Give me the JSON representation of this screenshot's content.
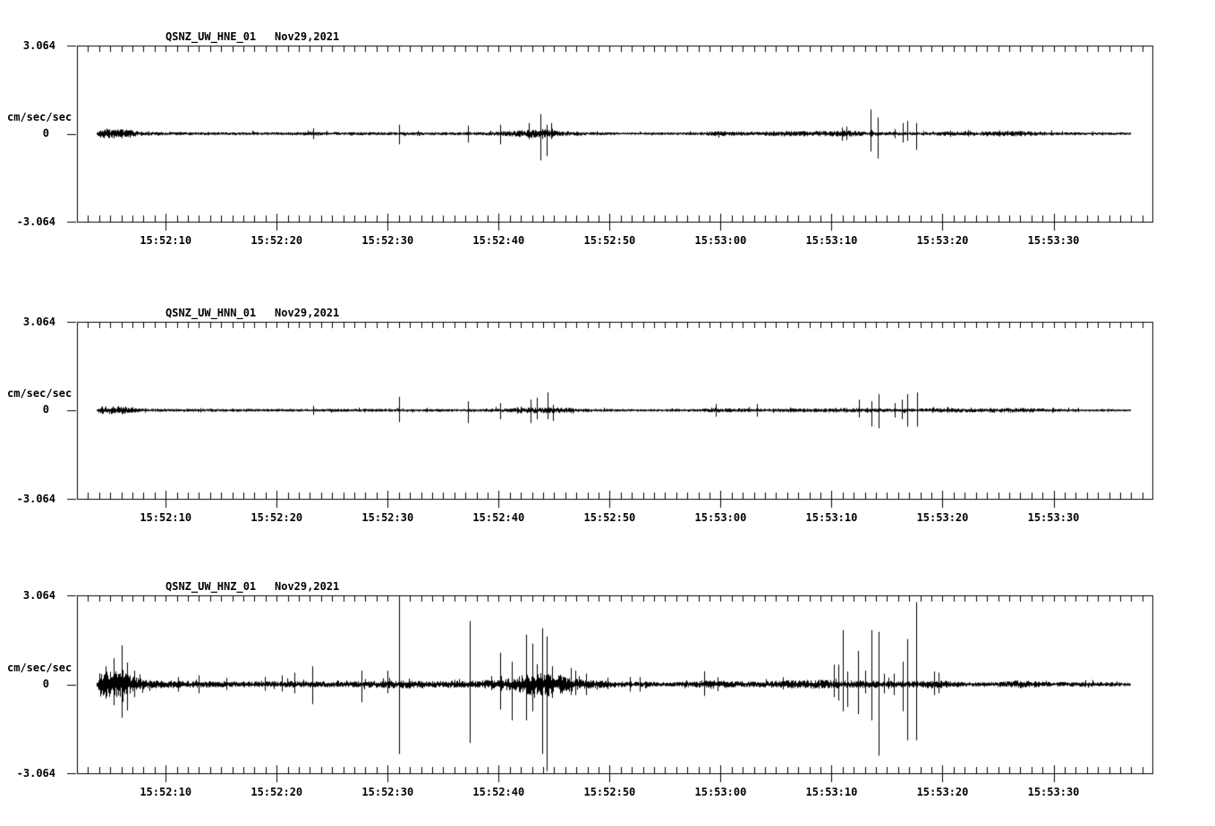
{
  "page": {
    "background": "#ffffff",
    "ink": "#000000"
  },
  "chart_data": {
    "type": "line",
    "kind": "seismogram-3-component-strong-motion",
    "date": "Nov29,2021",
    "grid": "off",
    "trace_color": "#000000",
    "y_axis": {
      "units_label": "cm/sec/sec",
      "max": 3.064,
      "min": -3.064,
      "max_label": "3.064",
      "zero_label": "0",
      "min_label": "-3.064"
    },
    "x_axis": {
      "start_time": "15:52:02",
      "end_time": "15:53:39",
      "seconds_domain": [
        2,
        98.9
      ],
      "minor_tick_every_s": 1,
      "major_tick_every_s": 10,
      "tick_labels": [
        {
          "t": 10,
          "text": "15:52:10"
        },
        {
          "t": 20,
          "text": "15:52:20"
        },
        {
          "t": 30,
          "text": "15:52:30"
        },
        {
          "t": 40,
          "text": "15:52:40"
        },
        {
          "t": 50,
          "text": "15:52:50"
        },
        {
          "t": 60,
          "text": "15:53:00"
        },
        {
          "t": 70,
          "text": "15:53:10"
        },
        {
          "t": 80,
          "text": "15:53:20"
        },
        {
          "t": 90,
          "text": "15:53:30"
        }
      ]
    },
    "panels": [
      {
        "station": "QSNZ_UW_HNE_01",
        "date": "Nov29,2021",
        "seed": 11,
        "trace": {
          "t_start": 3.75,
          "t_end": 96.9,
          "envelope": [
            [
              3.75,
              0.03
            ],
            [
              4.1,
              0.17
            ],
            [
              5.5,
              0.15
            ],
            [
              6.8,
              0.13
            ],
            [
              7.6,
              0.07
            ],
            [
              9,
              0.055
            ],
            [
              14,
              0.05
            ],
            [
              22,
              0.05
            ],
            [
              23.3,
              0.06
            ],
            [
              24,
              0.05
            ],
            [
              30,
              0.05
            ],
            [
              36,
              0.05
            ],
            [
              39.5,
              0.06
            ],
            [
              41,
              0.09
            ],
            [
              42.5,
              0.12
            ],
            [
              43.8,
              0.13
            ],
            [
              45,
              0.1
            ],
            [
              46.5,
              0.07
            ],
            [
              48,
              0.05
            ],
            [
              52,
              0.04
            ],
            [
              56,
              0.045
            ],
            [
              58,
              0.05
            ],
            [
              59.5,
              0.08
            ],
            [
              61,
              0.08
            ],
            [
              62.5,
              0.06
            ],
            [
              64,
              0.07
            ],
            [
              65.5,
              0.09
            ],
            [
              67,
              0.08
            ],
            [
              68.5,
              0.09
            ],
            [
              70,
              0.09
            ],
            [
              71.5,
              0.1
            ],
            [
              72.5,
              0.08
            ],
            [
              74.5,
              0.06
            ],
            [
              76,
              0.06
            ],
            [
              78,
              0.05
            ],
            [
              79.5,
              0.07
            ],
            [
              81,
              0.08
            ],
            [
              82.5,
              0.06
            ],
            [
              84,
              0.07
            ],
            [
              85.5,
              0.08
            ],
            [
              87,
              0.09
            ],
            [
              88.5,
              0.07
            ],
            [
              90,
              0.05
            ],
            [
              93,
              0.045
            ],
            [
              96.9,
              0.04
            ]
          ],
          "spikes": [
            [
              23.3,
              0.19,
              0.19
            ],
            [
              31.0,
              0.31,
              0.37
            ],
            [
              37.2,
              0.28,
              0.31
            ],
            [
              40.1,
              0.31,
              0.37
            ],
            [
              42.7,
              0.37,
              0.19
            ],
            [
              43.8,
              0.68,
              0.93
            ],
            [
              44.35,
              0.31,
              0.78
            ],
            [
              44.75,
              0.37,
              0.19
            ],
            [
              70.9,
              0.22,
              0.25
            ],
            [
              71.3,
              0.25,
              0.22
            ],
            [
              73.55,
              0.84,
              0.62
            ],
            [
              74.15,
              0.56,
              0.87
            ],
            [
              75.7,
              0.16,
              0.16
            ],
            [
              76.4,
              0.37,
              0.31
            ],
            [
              76.85,
              0.44,
              0.25
            ],
            [
              77.6,
              0.37,
              0.56
            ]
          ]
        }
      },
      {
        "station": "QSNZ_UW_HNN_01",
        "date": "Nov29,2021",
        "seed": 22,
        "trace": {
          "t_start": 3.75,
          "t_end": 96.9,
          "envelope": [
            [
              3.75,
              0.03
            ],
            [
              4.1,
              0.15
            ],
            [
              5.5,
              0.13
            ],
            [
              6.8,
              0.11
            ],
            [
              7.6,
              0.06
            ],
            [
              9,
              0.05
            ],
            [
              20,
              0.045
            ],
            [
              30,
              0.05
            ],
            [
              36,
              0.045
            ],
            [
              39.5,
              0.055
            ],
            [
              41,
              0.07
            ],
            [
              42.5,
              0.09
            ],
            [
              44,
              0.1
            ],
            [
              45.5,
              0.09
            ],
            [
              47,
              0.06
            ],
            [
              49,
              0.045
            ],
            [
              53,
              0.04
            ],
            [
              57,
              0.045
            ],
            [
              59,
              0.06
            ],
            [
              60.5,
              0.07
            ],
            [
              62,
              0.06
            ],
            [
              63.5,
              0.055
            ],
            [
              65,
              0.05
            ],
            [
              66.5,
              0.06
            ],
            [
              68,
              0.065
            ],
            [
              69.5,
              0.07
            ],
            [
              71,
              0.075
            ],
            [
              72.5,
              0.07
            ],
            [
              74,
              0.06
            ],
            [
              76,
              0.05
            ],
            [
              78,
              0.06
            ],
            [
              79.5,
              0.07
            ],
            [
              81,
              0.075
            ],
            [
              82.5,
              0.06
            ],
            [
              84,
              0.065
            ],
            [
              85.5,
              0.07
            ],
            [
              87,
              0.075
            ],
            [
              88.5,
              0.065
            ],
            [
              90,
              0.05
            ],
            [
              93,
              0.04
            ],
            [
              96.9,
              0.035
            ]
          ],
          "spikes": [
            [
              23.3,
              0.16,
              0.16
            ],
            [
              31.0,
              0.47,
              0.41
            ],
            [
              37.2,
              0.31,
              0.44
            ],
            [
              40.1,
              0.25,
              0.31
            ],
            [
              42.9,
              0.37,
              0.44
            ],
            [
              43.4,
              0.44,
              0.31
            ],
            [
              44.4,
              0.62,
              0.31
            ],
            [
              44.9,
              0.19,
              0.37
            ],
            [
              59.6,
              0.22,
              0.22
            ],
            [
              63.3,
              0.22,
              0.22
            ],
            [
              72.5,
              0.37,
              0.25
            ],
            [
              73.6,
              0.31,
              0.56
            ],
            [
              74.2,
              0.56,
              0.62
            ],
            [
              75.7,
              0.25,
              0.25
            ],
            [
              76.3,
              0.37,
              0.31
            ],
            [
              76.85,
              0.56,
              0.56
            ],
            [
              77.7,
              0.62,
              0.56
            ]
          ]
        }
      },
      {
        "station": "QSNZ_UW_HNZ_01",
        "date": "Nov29,2021",
        "seed": 33,
        "trace": {
          "t_start": 3.75,
          "t_end": 96.9,
          "envelope": [
            [
              3.75,
              0.05
            ],
            [
              4.1,
              0.45
            ],
            [
              5.0,
              0.42
            ],
            [
              6.2,
              0.38
            ],
            [
              7.0,
              0.25
            ],
            [
              7.8,
              0.17
            ],
            [
              9,
              0.14
            ],
            [
              11,
              0.11
            ],
            [
              14,
              0.1
            ],
            [
              17,
              0.09
            ],
            [
              20,
              0.1
            ],
            [
              23,
              0.1
            ],
            [
              26,
              0.09
            ],
            [
              29,
              0.11
            ],
            [
              31.5,
              0.13
            ],
            [
              33.5,
              0.1
            ],
            [
              36,
              0.11
            ],
            [
              38.5,
              0.13
            ],
            [
              40.5,
              0.17
            ],
            [
              42,
              0.28
            ],
            [
              43.5,
              0.38
            ],
            [
              44.8,
              0.38
            ],
            [
              45.8,
              0.28
            ],
            [
              47,
              0.18
            ],
            [
              48.5,
              0.13
            ],
            [
              50.5,
              0.1
            ],
            [
              53,
              0.08
            ],
            [
              55.5,
              0.07
            ],
            [
              57.5,
              0.09
            ],
            [
              58.7,
              0.15
            ],
            [
              60,
              0.13
            ],
            [
              61.5,
              0.1
            ],
            [
              63,
              0.09
            ],
            [
              64.5,
              0.11
            ],
            [
              66,
              0.13
            ],
            [
              67.5,
              0.12
            ],
            [
              68.7,
              0.15
            ],
            [
              70,
              0.13
            ],
            [
              71.5,
              0.12
            ],
            [
              73,
              0.13
            ],
            [
              74.5,
              0.12
            ],
            [
              76,
              0.1
            ],
            [
              78,
              0.1
            ],
            [
              79.4,
              0.15
            ],
            [
              80.5,
              0.11
            ],
            [
              82,
              0.07
            ],
            [
              84,
              0.07
            ],
            [
              85.7,
              0.09
            ],
            [
              86.8,
              0.13
            ],
            [
              88,
              0.11
            ],
            [
              89.2,
              0.08
            ],
            [
              91,
              0.07
            ],
            [
              93.5,
              0.08
            ],
            [
              96.9,
              0.06
            ]
          ],
          "spikes": [
            [
              4.6,
              0.62,
              0.5
            ],
            [
              5.3,
              0.9,
              0.72
            ],
            [
              6.0,
              1.34,
              1.15
            ],
            [
              6.5,
              0.75,
              0.9
            ],
            [
              7.2,
              0.47,
              0.44
            ],
            [
              11.1,
              0.25,
              0.25
            ],
            [
              13.0,
              0.31,
              0.31
            ],
            [
              15.5,
              0.22,
              0.19
            ],
            [
              18.9,
              0.25,
              0.22
            ],
            [
              20.5,
              0.31,
              0.25
            ],
            [
              21.6,
              0.4,
              0.31
            ],
            [
              23.2,
              0.62,
              0.68
            ],
            [
              27.6,
              0.47,
              0.62
            ],
            [
              30.0,
              0.47,
              0.31
            ],
            [
              31.0,
              3.05,
              2.4
            ],
            [
              37.4,
              2.18,
              2.02
            ],
            [
              40.1,
              1.09,
              0.87
            ],
            [
              41.2,
              0.78,
              1.24
            ],
            [
              42.5,
              1.71,
              1.24
            ],
            [
              43.0,
              1.4,
              0.93
            ],
            [
              43.9,
              1.93,
              2.4
            ],
            [
              44.3,
              1.65,
              2.99
            ],
            [
              44.8,
              0.62,
              0.47
            ],
            [
              46.5,
              0.56,
              0.37
            ],
            [
              46.9,
              0.47,
              0.37
            ],
            [
              47.9,
              0.37,
              0.37
            ],
            [
              51.8,
              0.25,
              0.25
            ],
            [
              52.7,
              0.25,
              0.25
            ],
            [
              58.5,
              0.45,
              0.4
            ],
            [
              70.2,
              0.68,
              0.44
            ],
            [
              70.6,
              0.68,
              0.56
            ],
            [
              71.0,
              1.87,
              0.93
            ],
            [
              71.4,
              0.44,
              0.78
            ],
            [
              72.4,
              1.15,
              1.03
            ],
            [
              73.0,
              0.47,
              0.31
            ],
            [
              73.6,
              1.87,
              1.24
            ],
            [
              74.2,
              1.81,
              2.46
            ],
            [
              74.7,
              0.37,
              0.31
            ],
            [
              75.6,
              0.37,
              0.37
            ],
            [
              76.4,
              0.78,
              0.93
            ],
            [
              76.8,
              1.56,
              1.93
            ],
            [
              77.6,
              2.83,
              1.93
            ],
            [
              79.2,
              0.44,
              0.37
            ],
            [
              79.6,
              0.4,
              0.31
            ]
          ]
        }
      }
    ]
  }
}
